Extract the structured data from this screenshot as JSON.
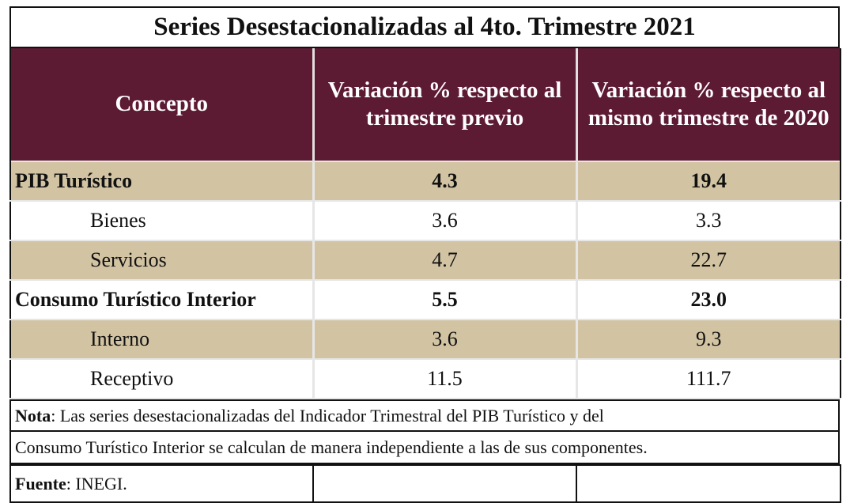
{
  "title": "Series Desestacionalizadas al 4to. Trimestre 2021",
  "header": {
    "col1": "Concepto",
    "col2": "Variación % respecto al trimestre previo",
    "col3": "Variación % respecto al mismo trimestre de 2020"
  },
  "rows": [
    {
      "concept": "PIB Turístico",
      "prev": "4.3",
      "year": "19.4"
    },
    {
      "concept": "Bienes",
      "prev": "3.6",
      "year": "3.3"
    },
    {
      "concept": "Servicios",
      "prev": "4.7",
      "year": "22.7"
    },
    {
      "concept": "Consumo Turístico Interior",
      "prev": "5.5",
      "year": "23.0"
    },
    {
      "concept": "Interno",
      "prev": "3.6",
      "year": "9.3"
    },
    {
      "concept": "Receptivo",
      "prev": "11.5",
      "year": "111.7"
    }
  ],
  "note": {
    "label": "Nota",
    "line1": ": Las series desestacionalizadas del Indicador Trimestral del PIB Turístico y del",
    "line2": "Consumo Turístico Interior se calculan de manera independiente a las de sus componentes."
  },
  "source": {
    "label": "Fuente",
    "text": ": INEGI."
  },
  "colors": {
    "header_bg": "#5d1a33",
    "tan_row": "#d2c4a3"
  }
}
